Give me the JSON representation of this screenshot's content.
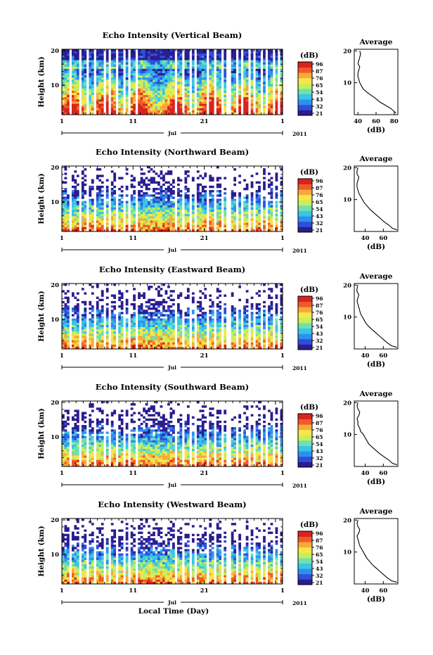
{
  "colors": {
    "scale": [
      "#2b1d8f",
      "#2f4fd8",
      "#2f8ff0",
      "#38c5e6",
      "#6fe0b0",
      "#c6ef5a",
      "#f7e64a",
      "#f8a93a",
      "#ef5a2a",
      "#d8231f"
    ]
  },
  "chart_data": [
    {
      "type": "heatmap",
      "title": "Echo Intensity (Vertical Beam)",
      "ylabel": "Height (km)",
      "yticks": [
        "20",
        "10"
      ],
      "xticks": [
        "1",
        "11",
        "21",
        "1"
      ],
      "month": "Jul",
      "year": "2011",
      "colorbar_label": "(dB)",
      "colorbar_ticks": [
        "96",
        "87",
        "76",
        "65",
        "54",
        "43",
        "32",
        "21"
      ],
      "avg": {
        "title": "Average",
        "xlabel": "(dB)",
        "xticks": [
          "40",
          "60",
          "80"
        ],
        "xlim": [
          36,
          84
        ],
        "profile": [
          [
            82,
            0.5
          ],
          [
            80,
            1
          ],
          [
            76,
            2
          ],
          [
            70,
            3
          ],
          [
            64,
            4
          ],
          [
            60,
            5
          ],
          [
            55,
            6
          ],
          [
            50,
            7
          ],
          [
            46,
            8
          ],
          [
            44,
            9
          ],
          [
            42,
            10
          ],
          [
            41,
            11
          ],
          [
            40,
            12
          ],
          [
            40,
            13
          ],
          [
            41,
            14
          ],
          [
            42,
            15
          ],
          [
            40,
            16
          ],
          [
            41,
            17
          ],
          [
            42,
            18
          ],
          [
            43,
            19
          ],
          [
            42,
            20
          ]
        ]
      }
    },
    {
      "type": "heatmap",
      "title": "Echo Intensity (Northward Beam)",
      "ylabel": "Height (km)",
      "yticks": [
        "20",
        "10"
      ],
      "xticks": [
        "1",
        "11",
        "21",
        "1"
      ],
      "month": "Jul",
      "year": "2011",
      "colorbar_label": "(dB)",
      "colorbar_ticks": [
        "96",
        "87",
        "76",
        "65",
        "54",
        "43",
        "32",
        "21"
      ],
      "avg": {
        "title": "Average",
        "xlabel": "(dB)",
        "xticks": [
          "40",
          "60"
        ],
        "xlim": [
          28,
          76
        ],
        "profile": [
          [
            75,
            0.5
          ],
          [
            70,
            1
          ],
          [
            66,
            2
          ],
          [
            61,
            3
          ],
          [
            57,
            4
          ],
          [
            53,
            5
          ],
          [
            49,
            6
          ],
          [
            45,
            7
          ],
          [
            42,
            8
          ],
          [
            39,
            9
          ],
          [
            37,
            10
          ],
          [
            35,
            11
          ],
          [
            33,
            12
          ],
          [
            32,
            13
          ],
          [
            31,
            14
          ],
          [
            31,
            15
          ],
          [
            32,
            16
          ],
          [
            33,
            17
          ],
          [
            31,
            18
          ],
          [
            31,
            19
          ],
          [
            32,
            20
          ]
        ]
      }
    },
    {
      "type": "heatmap",
      "title": "Echo Intensity (Eastward Beam)",
      "ylabel": "Height (km)",
      "yticks": [
        "20",
        "10"
      ],
      "xticks": [
        "1",
        "11",
        "21",
        "1"
      ],
      "month": "Jul",
      "year": "2011",
      "colorbar_label": "(dB)",
      "colorbar_ticks": [
        "96",
        "87",
        "76",
        "65",
        "54",
        "43",
        "32",
        "21"
      ],
      "avg": {
        "title": "Average",
        "xlabel": "(dB)",
        "xticks": [
          "40",
          "60"
        ],
        "xlim": [
          28,
          76
        ],
        "profile": [
          [
            75,
            0.5
          ],
          [
            69,
            1
          ],
          [
            64,
            2
          ],
          [
            60,
            3
          ],
          [
            56,
            4
          ],
          [
            52,
            5
          ],
          [
            48,
            6
          ],
          [
            44,
            7
          ],
          [
            41,
            8
          ],
          [
            39,
            9
          ],
          [
            37,
            10
          ],
          [
            35,
            11
          ],
          [
            34,
            12
          ],
          [
            33,
            13
          ],
          [
            32,
            14
          ],
          [
            31,
            15
          ],
          [
            32,
            16
          ],
          [
            33,
            17
          ],
          [
            31,
            18
          ],
          [
            31,
            19
          ],
          [
            32,
            20
          ]
        ]
      }
    },
    {
      "type": "heatmap",
      "title": "Echo Intensity (Southward Beam)",
      "ylabel": "Height (km)",
      "yticks": [
        "20",
        "10"
      ],
      "xticks": [
        "1",
        "11",
        "21",
        "1"
      ],
      "month": "Jul",
      "year": "2011",
      "colorbar_label": "(dB)",
      "colorbar_ticks": [
        "96",
        "87",
        "76",
        "65",
        "54",
        "43",
        "32",
        "21"
      ],
      "avg": {
        "title": "Average",
        "xlabel": "(dB)",
        "xticks": [
          "40",
          "60"
        ],
        "xlim": [
          28,
          76
        ],
        "profile": [
          [
            75,
            0.5
          ],
          [
            70,
            1
          ],
          [
            66,
            2
          ],
          [
            61,
            3
          ],
          [
            56,
            4
          ],
          [
            52,
            5
          ],
          [
            48,
            6
          ],
          [
            44,
            7
          ],
          [
            42,
            8
          ],
          [
            40,
            9
          ],
          [
            38,
            10
          ],
          [
            35,
            11
          ],
          [
            34,
            12
          ],
          [
            32,
            13
          ],
          [
            32,
            14
          ],
          [
            31,
            15
          ],
          [
            33,
            16
          ],
          [
            34,
            17
          ],
          [
            32,
            18
          ],
          [
            31,
            19
          ],
          [
            32,
            20
          ]
        ]
      }
    },
    {
      "type": "heatmap",
      "title": "Echo Intensity (Westward Beam)",
      "ylabel": "Height (km)",
      "yticks": [
        "20",
        "10"
      ],
      "xticks": [
        "1",
        "11",
        "21",
        "1"
      ],
      "month": "Jul",
      "year": "2011",
      "colorbar_label": "(dB)",
      "colorbar_ticks": [
        "96",
        "87",
        "76",
        "65",
        "54",
        "43",
        "32",
        "21"
      ],
      "xlabel": "Local Time (Day)",
      "avg": {
        "title": "Average",
        "xlabel": "(dB)",
        "xticks": [
          "40",
          "60"
        ],
        "xlim": [
          28,
          76
        ],
        "profile": [
          [
            75,
            0.5
          ],
          [
            69,
            1
          ],
          [
            64,
            2
          ],
          [
            60,
            3
          ],
          [
            56,
            4
          ],
          [
            52,
            5
          ],
          [
            48,
            6
          ],
          [
            45,
            7
          ],
          [
            42,
            8
          ],
          [
            40,
            9
          ],
          [
            38,
            10
          ],
          [
            36,
            11
          ],
          [
            34,
            12
          ],
          [
            33,
            13
          ],
          [
            32,
            14
          ],
          [
            31,
            15
          ],
          [
            33,
            16
          ],
          [
            34,
            17
          ],
          [
            32,
            18
          ],
          [
            31,
            19
          ],
          [
            32,
            20
          ]
        ]
      }
    }
  ]
}
